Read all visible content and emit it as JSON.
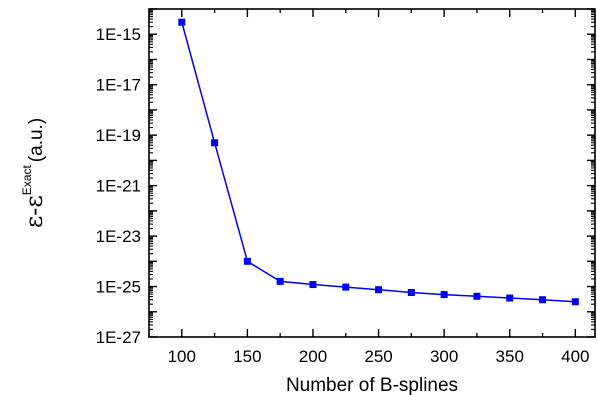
{
  "chart_data": {
    "type": "line",
    "xlabel": "Number of B-splines",
    "ylabel": {
      "main": "ε-ε",
      "superscript": "Exact",
      "unit": "(a.u.)"
    },
    "x_ticks": [
      "100",
      "150",
      "200",
      "250",
      "300",
      "350",
      "400"
    ],
    "y_ticks": [
      "1E-15",
      "1E-17",
      "1E-19",
      "1E-21",
      "1E-23",
      "1E-25",
      "1E-27"
    ],
    "xlim": [
      75,
      415
    ],
    "ylim": [
      1e-27,
      1e-14
    ],
    "yscale": "log",
    "grid": false,
    "series": [
      {
        "color": "#0000ff",
        "marker": "square",
        "points": [
          {
            "x": 100,
            "y": 3e-15
          },
          {
            "x": 125,
            "y": 5e-20
          },
          {
            "x": 150,
            "y": 1e-24
          },
          {
            "x": 175,
            "y": 1.6e-25
          },
          {
            "x": 200,
            "y": 1.2e-25
          },
          {
            "x": 225,
            "y": 9.5e-26
          },
          {
            "x": 250,
            "y": 7.5e-26
          },
          {
            "x": 275,
            "y": 5.8e-26
          },
          {
            "x": 300,
            "y": 4.8e-26
          },
          {
            "x": 325,
            "y": 4.1e-26
          },
          {
            "x": 350,
            "y": 3.5e-26
          },
          {
            "x": 375,
            "y": 3e-26
          },
          {
            "x": 400,
            "y": 2.5e-26
          }
        ]
      }
    ]
  }
}
